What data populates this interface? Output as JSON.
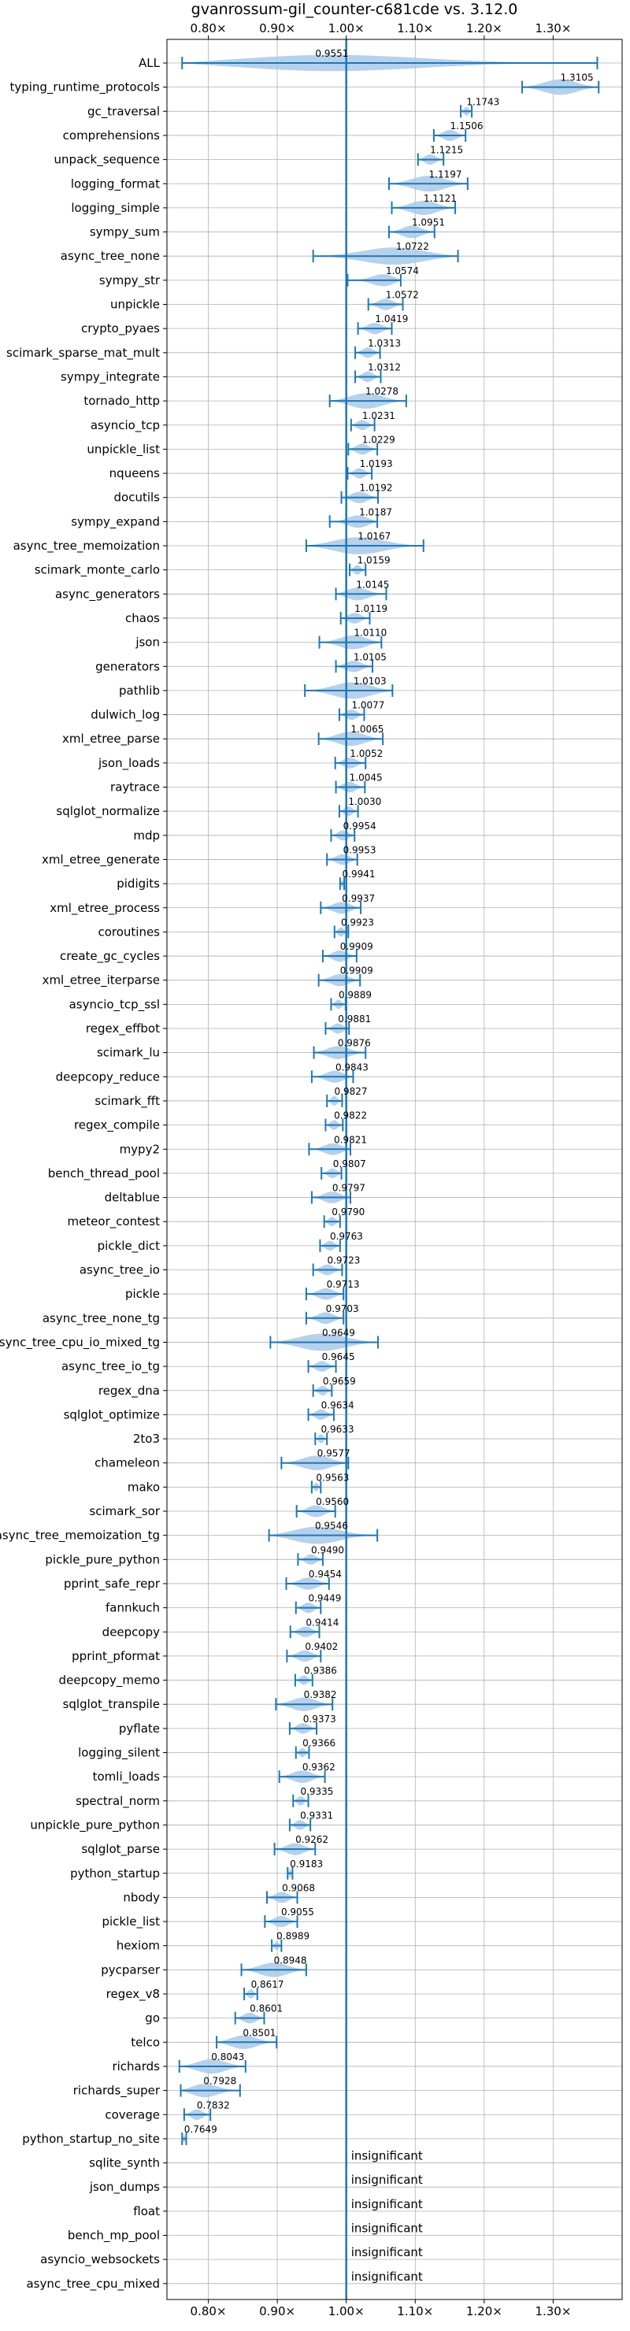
{
  "chart_data": {
    "type": "violin",
    "title": "gvanrossum-gil_counter-c681cde vs. 3.12.0",
    "xlim": [
      0.74,
      1.4
    ],
    "x_ticks": [
      0.8,
      0.9,
      1.0,
      1.1,
      1.2,
      1.3
    ],
    "x_tick_labels": [
      "0.80×",
      "0.90×",
      "1.00×",
      "1.10×",
      "1.20×",
      "1.30×"
    ],
    "reference_line": 1.0,
    "grid": true,
    "colors": {
      "violin": "#a9c9e8",
      "whisker": "#1f77b4"
    },
    "insignificant_label": "insignificant",
    "benchmarks": [
      {
        "name": "ALL",
        "value": 0.9551,
        "label": "0.9551",
        "min": 0.762,
        "max": 1.364
      },
      {
        "name": "typing_runtime_protocols",
        "value": 1.3105,
        "label": "1.3105",
        "min": 1.255,
        "max": 1.366
      },
      {
        "name": "gc_traversal",
        "value": 1.1743,
        "label": "1.1743",
        "min": 1.166,
        "max": 1.182
      },
      {
        "name": "comprehensions",
        "value": 1.1506,
        "label": "1.1506",
        "min": 1.127,
        "max": 1.173
      },
      {
        "name": "unpack_sequence",
        "value": 1.1215,
        "label": "1.1215",
        "min": 1.104,
        "max": 1.141
      },
      {
        "name": "logging_format",
        "value": 1.1197,
        "label": "1.1197",
        "min": 1.062,
        "max": 1.176
      },
      {
        "name": "logging_simple",
        "value": 1.1121,
        "label": "1.1121",
        "min": 1.066,
        "max": 1.158
      },
      {
        "name": "sympy_sum",
        "value": 1.0951,
        "label": "1.0951",
        "min": 1.062,
        "max": 1.128
      },
      {
        "name": "async_tree_none",
        "value": 1.0722,
        "label": "1.0722",
        "min": 0.952,
        "max": 1.162
      },
      {
        "name": "sympy_str",
        "value": 1.0574,
        "label": "1.0574",
        "min": 1.002,
        "max": 1.079
      },
      {
        "name": "unpickle",
        "value": 1.0572,
        "label": "1.0572",
        "min": 1.032,
        "max": 1.082
      },
      {
        "name": "crypto_pyaes",
        "value": 1.0419,
        "label": "1.0419",
        "min": 1.017,
        "max": 1.066
      },
      {
        "name": "scimark_sparse_mat_mult",
        "value": 1.0313,
        "label": "1.0313",
        "min": 1.013,
        "max": 1.049
      },
      {
        "name": "sympy_integrate",
        "value": 1.0312,
        "label": "1.0312",
        "min": 1.013,
        "max": 1.05
      },
      {
        "name": "tornado_http",
        "value": 1.0278,
        "label": "1.0278",
        "min": 0.976,
        "max": 1.087
      },
      {
        "name": "asyncio_tcp",
        "value": 1.0231,
        "label": "1.0231",
        "min": 1.007,
        "max": 1.041
      },
      {
        "name": "unpickle_list",
        "value": 1.0229,
        "label": "1.0229",
        "min": 1.003,
        "max": 1.045
      },
      {
        "name": "nqueens",
        "value": 1.0193,
        "label": "1.0193",
        "min": 1.002,
        "max": 1.037
      },
      {
        "name": "docutils",
        "value": 1.0192,
        "label": "1.0192",
        "min": 0.993,
        "max": 1.046
      },
      {
        "name": "sympy_expand",
        "value": 1.0187,
        "label": "1.0187",
        "min": 0.976,
        "max": 1.045
      },
      {
        "name": "async_tree_memoization",
        "value": 1.0167,
        "label": "1.0167",
        "min": 0.942,
        "max": 1.112
      },
      {
        "name": "scimark_monte_carlo",
        "value": 1.0159,
        "label": "1.0159",
        "min": 1.005,
        "max": 1.028
      },
      {
        "name": "async_generators",
        "value": 1.0145,
        "label": "1.0145",
        "min": 0.985,
        "max": 1.058
      },
      {
        "name": "chaos",
        "value": 1.0119,
        "label": "1.0119",
        "min": 0.992,
        "max": 1.034
      },
      {
        "name": "json",
        "value": 1.011,
        "label": "1.0110",
        "min": 0.961,
        "max": 1.051
      },
      {
        "name": "generators",
        "value": 1.0105,
        "label": "1.0105",
        "min": 0.985,
        "max": 1.038
      },
      {
        "name": "pathlib",
        "value": 1.0103,
        "label": "1.0103",
        "min": 0.94,
        "max": 1.067
      },
      {
        "name": "dulwich_log",
        "value": 1.0077,
        "label": "1.0077",
        "min": 0.99,
        "max": 1.026
      },
      {
        "name": "xml_etree_parse",
        "value": 1.0065,
        "label": "1.0065",
        "min": 0.96,
        "max": 1.053
      },
      {
        "name": "json_loads",
        "value": 1.0052,
        "label": "1.0052",
        "min": 0.984,
        "max": 1.028
      },
      {
        "name": "raytrace",
        "value": 1.0045,
        "label": "1.0045",
        "min": 0.985,
        "max": 1.027
      },
      {
        "name": "sqlglot_normalize",
        "value": 1.003,
        "label": "1.0030",
        "min": 0.99,
        "max": 1.017
      },
      {
        "name": "mdp",
        "value": 0.9954,
        "label": "0.9954",
        "min": 0.978,
        "max": 1.012
      },
      {
        "name": "xml_etree_generate",
        "value": 0.9953,
        "label": "0.9953",
        "min": 0.972,
        "max": 1.016
      },
      {
        "name": "pidigits",
        "value": 0.9941,
        "label": "0.9941",
        "min": 0.991,
        "max": 0.997
      },
      {
        "name": "xml_etree_process",
        "value": 0.9937,
        "label": "0.9937",
        "min": 0.963,
        "max": 1.021
      },
      {
        "name": "coroutines",
        "value": 0.9923,
        "label": "0.9923",
        "min": 0.983,
        "max": 1.003
      },
      {
        "name": "create_gc_cycles",
        "value": 0.9909,
        "label": "0.9909",
        "min": 0.966,
        "max": 1.015
      },
      {
        "name": "xml_etree_iterparse",
        "value": 0.9909,
        "label": "0.9909",
        "min": 0.96,
        "max": 1.02
      },
      {
        "name": "asyncio_tcp_ssl",
        "value": 0.9889,
        "label": "0.9889",
        "min": 0.978,
        "max": 0.999
      },
      {
        "name": "regex_effbot",
        "value": 0.9881,
        "label": "0.9881",
        "min": 0.97,
        "max": 1.004
      },
      {
        "name": "scimark_lu",
        "value": 0.9876,
        "label": "0.9876",
        "min": 0.953,
        "max": 1.028
      },
      {
        "name": "deepcopy_reduce",
        "value": 0.9843,
        "label": "0.9843",
        "min": 0.95,
        "max": 1.01
      },
      {
        "name": "scimark_fft",
        "value": 0.9827,
        "label": "0.9827",
        "min": 0.972,
        "max": 0.994
      },
      {
        "name": "regex_compile",
        "value": 0.9822,
        "label": "0.9822",
        "min": 0.97,
        "max": 0.995
      },
      {
        "name": "mypy2",
        "value": 0.9821,
        "label": "0.9821",
        "min": 0.946,
        "max": 1.006
      },
      {
        "name": "bench_thread_pool",
        "value": 0.9807,
        "label": "0.9807",
        "min": 0.964,
        "max": 0.993
      },
      {
        "name": "deltablue",
        "value": 0.9797,
        "label": "0.9797",
        "min": 0.95,
        "max": 1.006
      },
      {
        "name": "meteor_contest",
        "value": 0.979,
        "label": "0.9790",
        "min": 0.968,
        "max": 0.991
      },
      {
        "name": "pickle_dict",
        "value": 0.9763,
        "label": "0.9763",
        "min": 0.962,
        "max": 0.991
      },
      {
        "name": "async_tree_io",
        "value": 0.9723,
        "label": "0.9723",
        "min": 0.952,
        "max": 0.994
      },
      {
        "name": "pickle",
        "value": 0.9713,
        "label": "0.9713",
        "min": 0.942,
        "max": 0.996
      },
      {
        "name": "async_tree_none_tg",
        "value": 0.9703,
        "label": "0.9703",
        "min": 0.942,
        "max": 0.996
      },
      {
        "name": "async_tree_cpu_io_mixed_tg",
        "value": 0.9649,
        "label": "0.9649",
        "min": 0.89,
        "max": 1.046
      },
      {
        "name": "async_tree_io_tg",
        "value": 0.9645,
        "label": "0.9645",
        "min": 0.945,
        "max": 0.985
      },
      {
        "name": "regex_dna",
        "value": 0.9659,
        "label": "0.9659",
        "min": 0.952,
        "max": 0.979
      },
      {
        "name": "sqlglot_optimize",
        "value": 0.9634,
        "label": "0.9634",
        "min": 0.945,
        "max": 0.982
      },
      {
        "name": "2to3",
        "value": 0.9633,
        "label": "0.9633",
        "min": 0.955,
        "max": 0.972
      },
      {
        "name": "chameleon",
        "value": 0.9577,
        "label": "0.9577",
        "min": 0.906,
        "max": 1.003
      },
      {
        "name": "mako",
        "value": 0.9563,
        "label": "0.9563",
        "min": 0.95,
        "max": 0.963
      },
      {
        "name": "scimark_sor",
        "value": 0.956,
        "label": "0.9560",
        "min": 0.928,
        "max": 0.984
      },
      {
        "name": "async_tree_memoization_tg",
        "value": 0.9546,
        "label": "0.9546",
        "min": 0.888,
        "max": 1.045
      },
      {
        "name": "pickle_pure_python",
        "value": 0.949,
        "label": "0.9490",
        "min": 0.93,
        "max": 0.966
      },
      {
        "name": "pprint_safe_repr",
        "value": 0.9454,
        "label": "0.9454",
        "min": 0.913,
        "max": 0.975
      },
      {
        "name": "fannkuch",
        "value": 0.9449,
        "label": "0.9449",
        "min": 0.927,
        "max": 0.963
      },
      {
        "name": "deepcopy",
        "value": 0.9414,
        "label": "0.9414",
        "min": 0.919,
        "max": 0.961
      },
      {
        "name": "pprint_pformat",
        "value": 0.9402,
        "label": "0.9402",
        "min": 0.914,
        "max": 0.963
      },
      {
        "name": "deepcopy_memo",
        "value": 0.9386,
        "label": "0.9386",
        "min": 0.926,
        "max": 0.951
      },
      {
        "name": "sqlglot_transpile",
        "value": 0.9382,
        "label": "0.9382",
        "min": 0.898,
        "max": 0.98
      },
      {
        "name": "pyflate",
        "value": 0.9373,
        "label": "0.9373",
        "min": 0.918,
        "max": 0.957
      },
      {
        "name": "logging_silent",
        "value": 0.9366,
        "label": "0.9366",
        "min": 0.927,
        "max": 0.946
      },
      {
        "name": "tomli_loads",
        "value": 0.9362,
        "label": "0.9362",
        "min": 0.903,
        "max": 0.969
      },
      {
        "name": "spectral_norm",
        "value": 0.9335,
        "label": "0.9335",
        "min": 0.923,
        "max": 0.945
      },
      {
        "name": "unpickle_pure_python",
        "value": 0.9331,
        "label": "0.9331",
        "min": 0.918,
        "max": 0.948
      },
      {
        "name": "sqlglot_parse",
        "value": 0.9262,
        "label": "0.9262",
        "min": 0.896,
        "max": 0.955
      },
      {
        "name": "python_startup",
        "value": 0.9183,
        "label": "0.9183",
        "min": 0.915,
        "max": 0.922
      },
      {
        "name": "nbody",
        "value": 0.9068,
        "label": "0.9068",
        "min": 0.885,
        "max": 0.929
      },
      {
        "name": "pickle_list",
        "value": 0.9055,
        "label": "0.9055",
        "min": 0.882,
        "max": 0.929
      },
      {
        "name": "hexiom",
        "value": 0.8989,
        "label": "0.8989",
        "min": 0.892,
        "max": 0.906
      },
      {
        "name": "pycparser",
        "value": 0.8948,
        "label": "0.8948",
        "min": 0.848,
        "max": 0.942
      },
      {
        "name": "regex_v8",
        "value": 0.8617,
        "label": "0.8617",
        "min": 0.852,
        "max": 0.871
      },
      {
        "name": "go",
        "value": 0.8601,
        "label": "0.8601",
        "min": 0.839,
        "max": 0.881
      },
      {
        "name": "telco",
        "value": 0.8501,
        "label": "0.8501",
        "min": 0.812,
        "max": 0.899
      },
      {
        "name": "richards",
        "value": 0.8043,
        "label": "0.8043",
        "min": 0.758,
        "max": 0.854
      },
      {
        "name": "richards_super",
        "value": 0.7928,
        "label": "0.7928",
        "min": 0.76,
        "max": 0.846
      },
      {
        "name": "coverage",
        "value": 0.7832,
        "label": "0.7832",
        "min": 0.765,
        "max": 0.803
      },
      {
        "name": "python_startup_no_site",
        "value": 0.7649,
        "label": "0.7649",
        "min": 0.762,
        "max": 0.768
      },
      {
        "name": "sqlite_synth",
        "value": null,
        "label": "insignificant",
        "min": null,
        "max": null
      },
      {
        "name": "json_dumps",
        "value": null,
        "label": "insignificant",
        "min": null,
        "max": null
      },
      {
        "name": "float",
        "value": null,
        "label": "insignificant",
        "min": null,
        "max": null
      },
      {
        "name": "bench_mp_pool",
        "value": null,
        "label": "insignificant",
        "min": null,
        "max": null
      },
      {
        "name": "asyncio_websockets",
        "value": null,
        "label": "insignificant",
        "min": null,
        "max": null
      },
      {
        "name": "async_tree_cpu_mixed",
        "value": null,
        "label": "insignificant",
        "min": null,
        "max": null
      }
    ]
  }
}
